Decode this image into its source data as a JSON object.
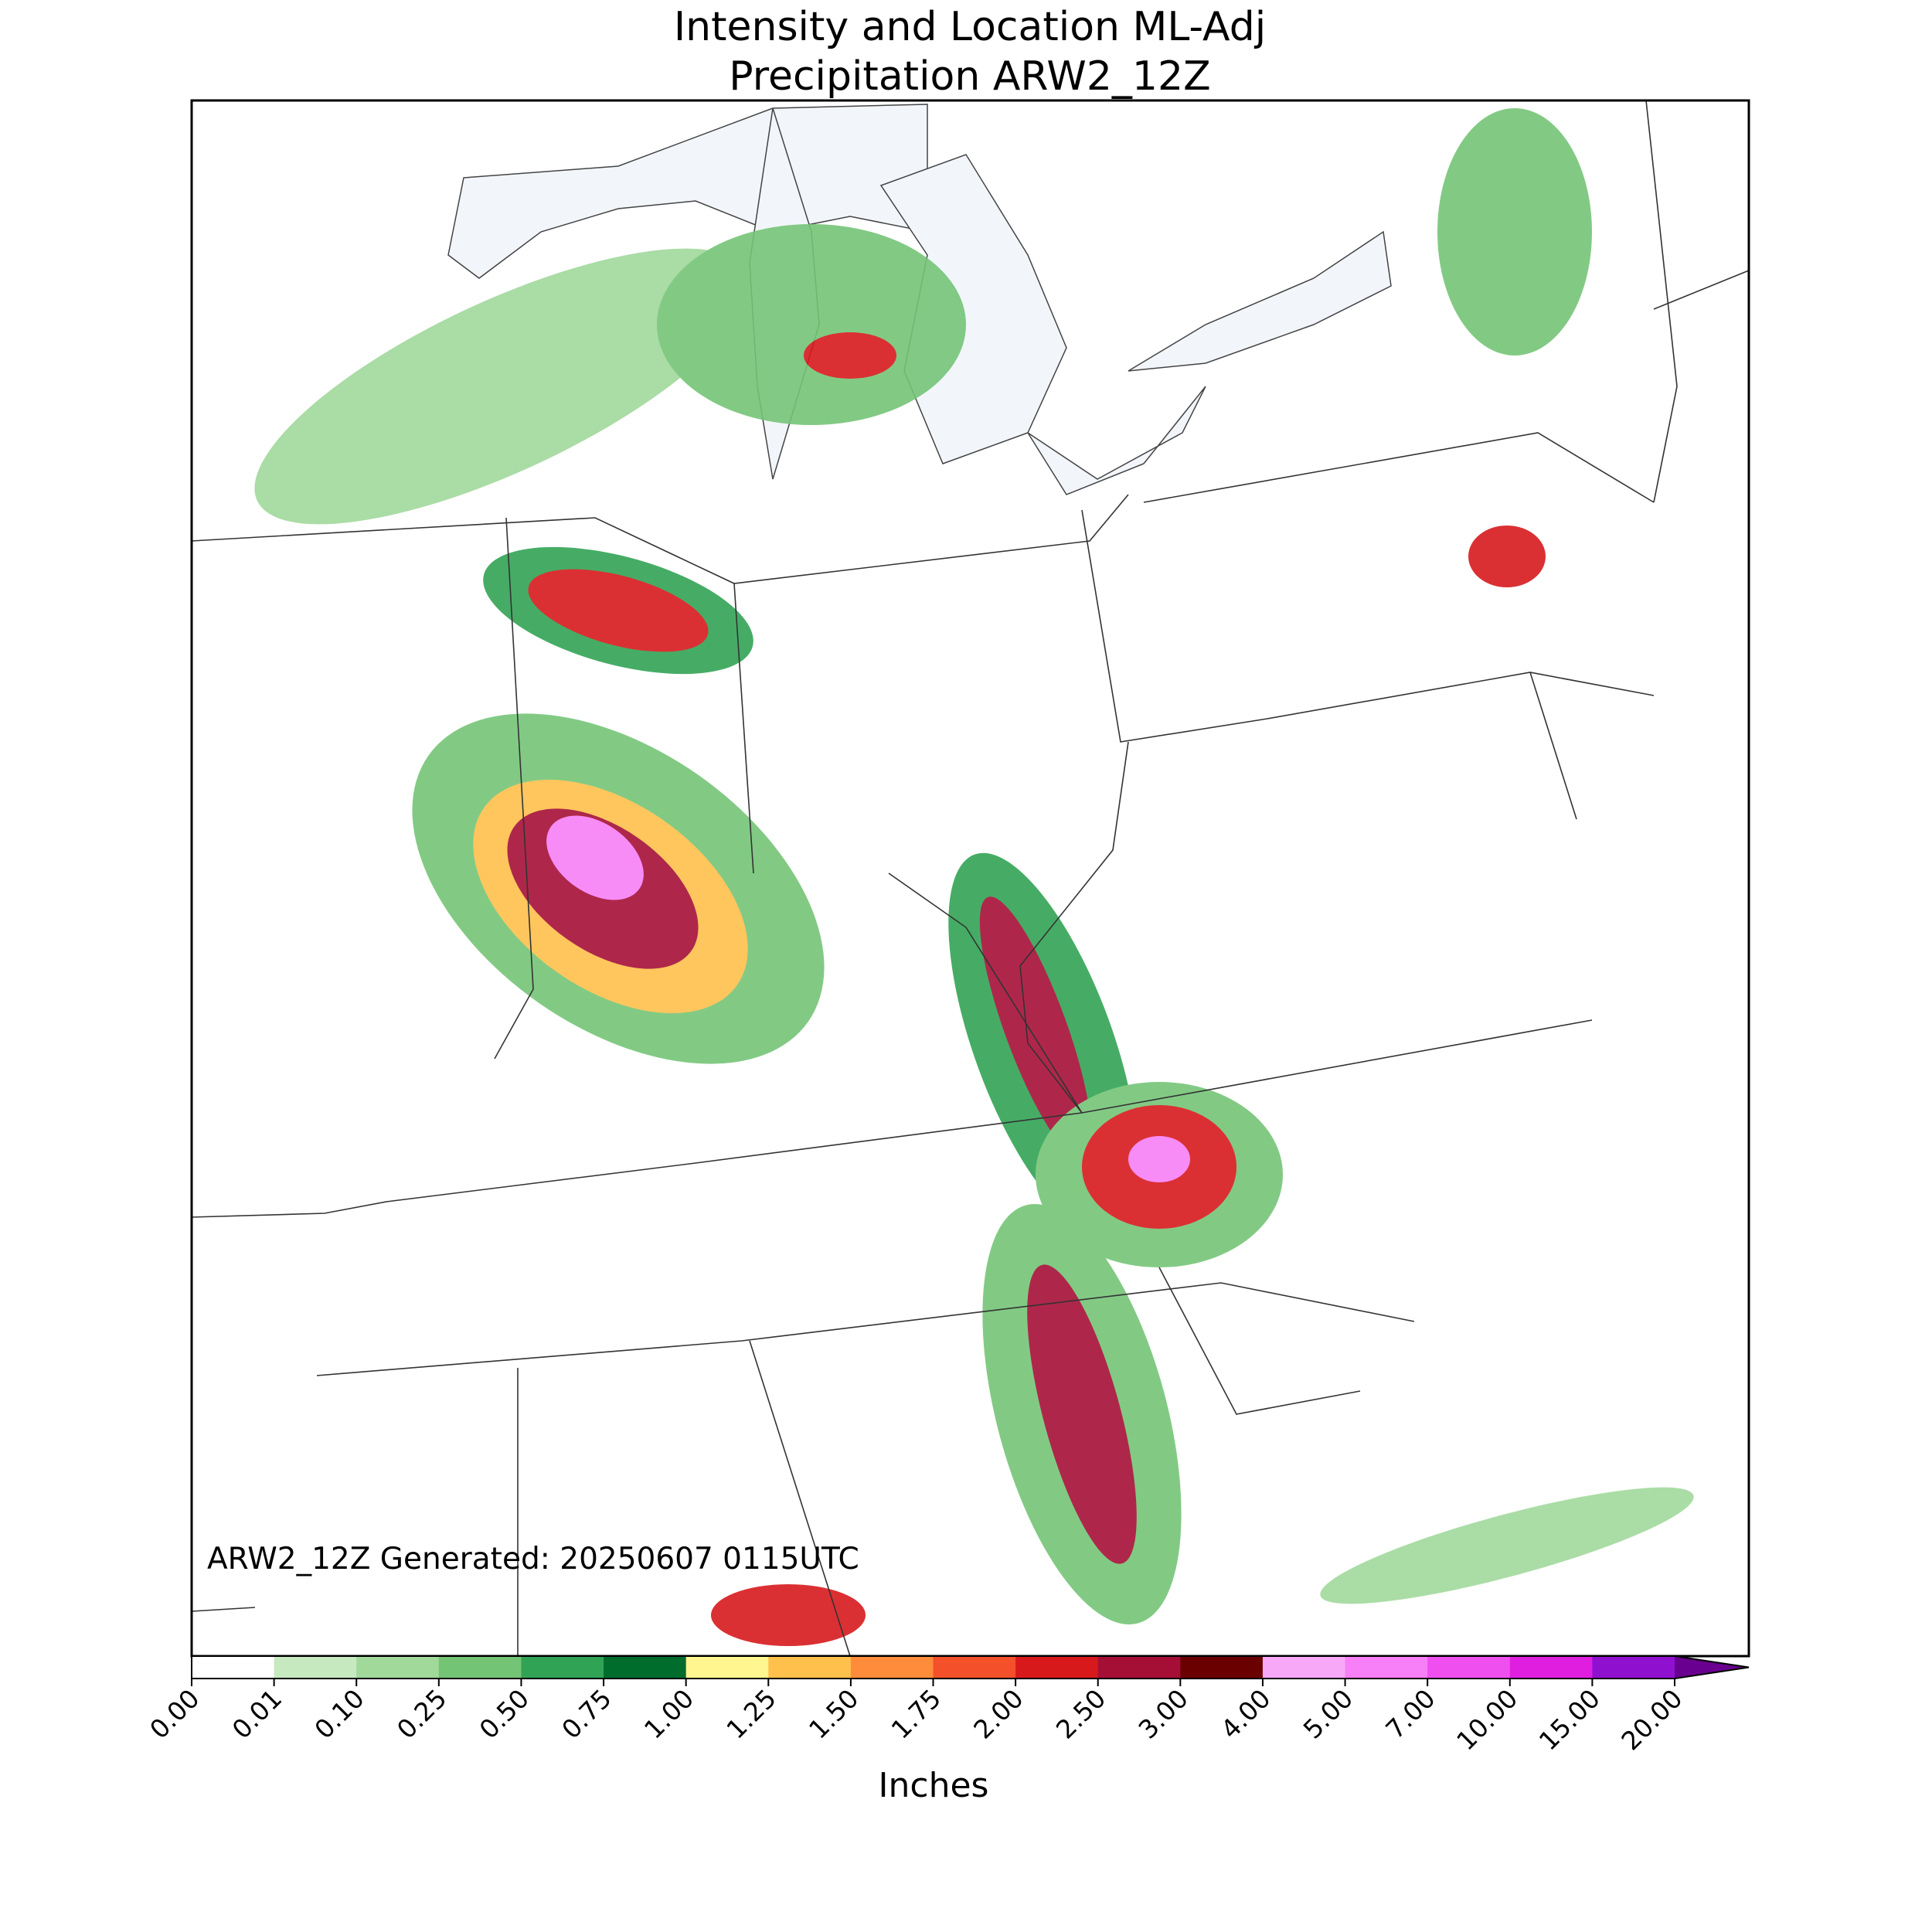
{
  "title": [
    "Intensity and Location ML-Adj",
    "Precipitation ARW2_12Z"
  ],
  "annotation": "ARW2_12Z Generated: 20250607 0115UTC",
  "colorbar": {
    "label": "Inches",
    "ticks": [
      {
        "value": 0,
        "label": "0.00"
      },
      {
        "value": 0.01,
        "label": "0.01"
      },
      {
        "value": 0.1,
        "label": "0.10"
      },
      {
        "value": 0.25,
        "label": "0.25"
      },
      {
        "value": 0.5,
        "label": "0.50"
      },
      {
        "value": 0.75,
        "label": "0.75"
      },
      {
        "value": 1,
        "label": "1.00"
      },
      {
        "value": 1.25,
        "label": "1.25"
      },
      {
        "value": 1.5,
        "label": "1.50"
      },
      {
        "value": 1.75,
        "label": "1.75"
      },
      {
        "value": 2,
        "label": "2.00"
      },
      {
        "value": 2.5,
        "label": "2.50"
      },
      {
        "value": 3,
        "label": "3.00"
      },
      {
        "value": 4,
        "label": "4.00"
      },
      {
        "value": 5,
        "label": "5.00"
      },
      {
        "value": 7,
        "label": "7.00"
      },
      {
        "value": 10,
        "label": "10.00"
      },
      {
        "value": 15,
        "label": "15.00"
      },
      {
        "value": 20,
        "label": "20.00"
      }
    ],
    "colors": [
      "#ffffff",
      "#c7e9c0",
      "#a1d99b",
      "#74c476",
      "#31a354",
      "#006d2c",
      "#fff68f",
      "#ffc04c",
      "#ff8c3a",
      "#f4502a",
      "#d7191c",
      "#a50f36",
      "#6b0000",
      "#f7a8f7",
      "#f77ff7",
      "#f04ff0",
      "#e01ee0",
      "#9010d0"
    ],
    "extend_color": "#6a0090"
  }
}
